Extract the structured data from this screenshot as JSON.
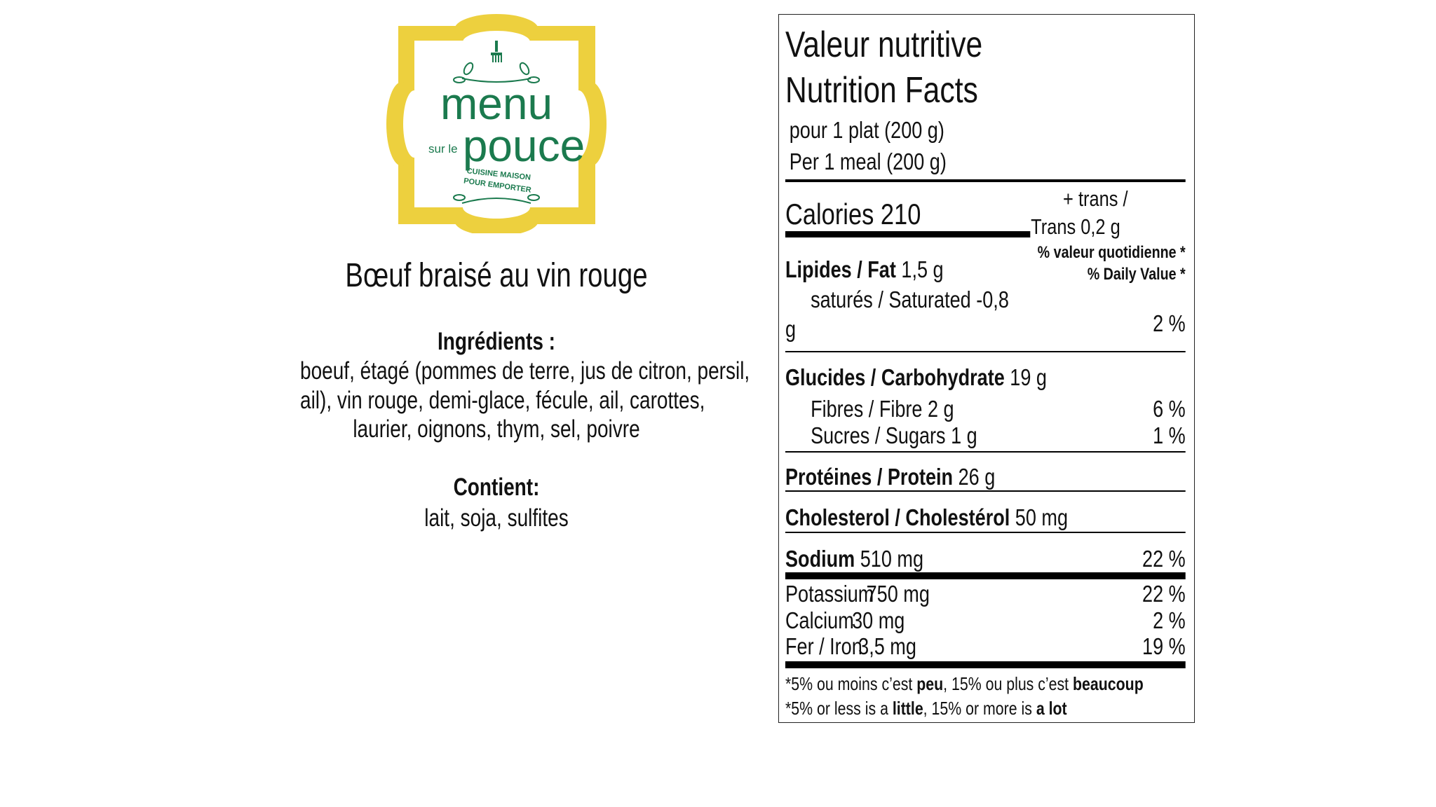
{
  "logo": {
    "brand_top": "menu",
    "brand_small": "sur le",
    "brand_bottom": "pouce",
    "tagline_1": "CUISINE MAISON",
    "tagline_2": "POUR EMPORTER",
    "colors": {
      "frame": "#EDD03E",
      "green": "#1B7A4E"
    },
    "icon": "fork-icon"
  },
  "product": {
    "title": "Bœuf braisé au vin rouge",
    "ingredients_label": "Ingrédients :",
    "ingredients_lines": [
      "boeuf, étagé (pommes de terre, jus de citron, persil,",
      "ail), vin rouge, demi-glace, fécule, ail, carottes,",
      "laurier, oignons, thym, sel, poivre"
    ],
    "contains_label": "Contient:",
    "contains": "lait, soja, sulfites"
  },
  "nutrition": {
    "title_fr": "Valeur nutritive",
    "title_en": "Nutrition Facts",
    "serving_fr": "pour 1 plat (200 g)",
    "serving_en": "Per 1 meal (200 g)",
    "calories": "Calories 210",
    "trans_1": "+ trans /",
    "trans_2": "Trans 0,2 g",
    "dv_fr": "% valeur quotidienne *",
    "dv_en": "% Daily Value *",
    "fat_label": "Lipides / Fat",
    "fat_value": "1,5 g",
    "saturated": "saturés /  Saturated -0,8",
    "saturated_unit": "g",
    "fat_dv": "2 %",
    "carb_label": "Glucides / Carbohydrate",
    "carb_value": "19 g",
    "fibre": "Fibres / Fibre 2 g",
    "fibre_dv": "6 %",
    "sugars": "Sucres / Sugars 1 g",
    "sugars_dv": "1 %",
    "protein_label": "Protéines / Protein",
    "protein_value": "26 g",
    "chol_label": "Cholesterol / Cholestérol",
    "chol_value": "50 mg",
    "sodium_label": "Sodium",
    "sodium_value": "510 mg",
    "sodium_dv": "22 %",
    "minerals": [
      {
        "label": "Potassium",
        "value": "750 mg",
        "dv": "22 %"
      },
      {
        "label": "Calcium",
        "value": "30 mg",
        "dv": "2 %"
      },
      {
        "label": "Fer / Iron",
        "value": "3,5 mg",
        "dv": "19 %"
      }
    ],
    "foot_fr": {
      "a": "*5% ou moins c’est ",
      "b": "peu",
      "c": ", 15% ou plus c’est ",
      "d": "beaucoup"
    },
    "foot_en": {
      "a": "*5% or less is a ",
      "b": "little",
      "c": ", 15% or more is ",
      "d": "a lot"
    }
  }
}
